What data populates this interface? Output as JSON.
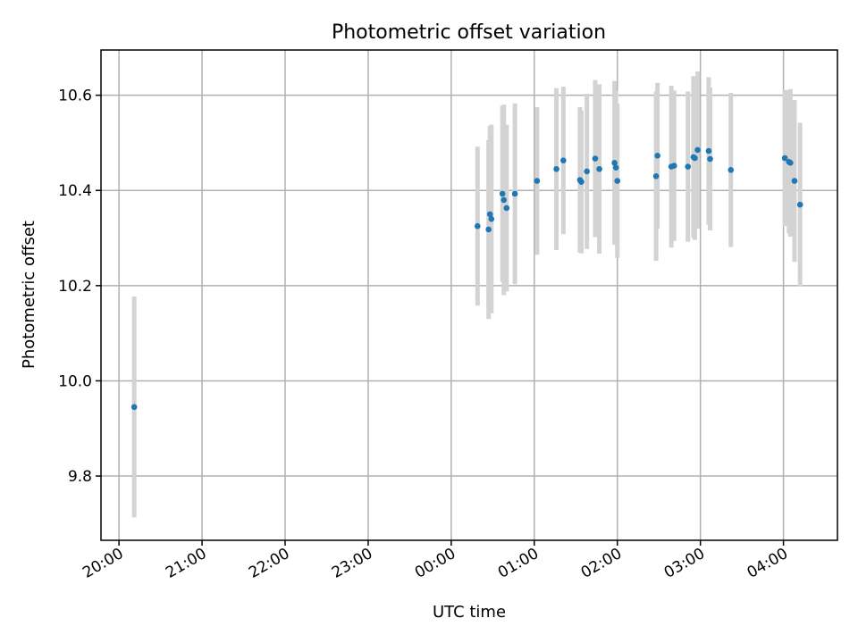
{
  "chart_data": {
    "type": "scatter",
    "title": "Photometric offset variation",
    "xlabel": "UTC time",
    "ylabel": "Photometric offset",
    "x_axis_type": "time",
    "xlim": [
      "19:47",
      "04:39"
    ],
    "ylim": [
      9.665,
      10.695
    ],
    "x_ticks": [
      "20:00",
      "21:00",
      "22:00",
      "23:00",
      "00:00",
      "01:00",
      "02:00",
      "03:00",
      "04:00"
    ],
    "y_ticks": [
      "9.8",
      "10.0",
      "10.2",
      "10.4",
      "10.6"
    ],
    "grid": true,
    "marker_color": "#1f77b4",
    "errorbar_color": "#d3d3d3",
    "points": [
      {
        "t": "20:11",
        "y": 9.945,
        "err": 0.232
      },
      {
        "t": "00:19",
        "y": 10.325,
        "err": 0.167
      },
      {
        "t": "00:27",
        "y": 10.318,
        "err": 0.188
      },
      {
        "t": "00:28",
        "y": 10.35,
        "err": 0.185
      },
      {
        "t": "00:29",
        "y": 10.34,
        "err": 0.198
      },
      {
        "t": "00:37",
        "y": 10.393,
        "err": 0.185
      },
      {
        "t": "00:38",
        "y": 10.38,
        "err": 0.2
      },
      {
        "t": "00:40",
        "y": 10.363,
        "err": 0.175
      },
      {
        "t": "00:46",
        "y": 10.393,
        "err": 0.19
      },
      {
        "t": "01:02",
        "y": 10.42,
        "err": 0.155
      },
      {
        "t": "01:16",
        "y": 10.445,
        "err": 0.17
      },
      {
        "t": "01:21",
        "y": 10.463,
        "err": 0.155
      },
      {
        "t": "01:33",
        "y": 10.422,
        "err": 0.153
      },
      {
        "t": "01:34",
        "y": 10.418,
        "err": 0.15
      },
      {
        "t": "01:38",
        "y": 10.44,
        "err": 0.163
      },
      {
        "t": "01:44",
        "y": 10.467,
        "err": 0.165
      },
      {
        "t": "01:47",
        "y": 10.445,
        "err": 0.178
      },
      {
        "t": "01:58",
        "y": 10.458,
        "err": 0.172
      },
      {
        "t": "01:59",
        "y": 10.448,
        "err": 0.162
      },
      {
        "t": "02:00",
        "y": 10.42,
        "err": 0.162
      },
      {
        "t": "02:28",
        "y": 10.43,
        "err": 0.178
      },
      {
        "t": "02:29",
        "y": 10.473,
        "err": 0.153
      },
      {
        "t": "02:39",
        "y": 10.45,
        "err": 0.17
      },
      {
        "t": "02:41",
        "y": 10.452,
        "err": 0.158
      },
      {
        "t": "02:51",
        "y": 10.45,
        "err": 0.158
      },
      {
        "t": "02:55",
        "y": 10.47,
        "err": 0.17
      },
      {
        "t": "02:56",
        "y": 10.468,
        "err": 0.172
      },
      {
        "t": "02:58",
        "y": 10.485,
        "err": 0.165
      },
      {
        "t": "03:06",
        "y": 10.483,
        "err": 0.155
      },
      {
        "t": "03:07",
        "y": 10.466,
        "err": 0.15
      },
      {
        "t": "03:22",
        "y": 10.443,
        "err": 0.162
      },
      {
        "t": "04:01",
        "y": 10.468,
        "err": 0.143
      },
      {
        "t": "04:04",
        "y": 10.46,
        "err": 0.15
      },
      {
        "t": "04:05",
        "y": 10.458,
        "err": 0.155
      },
      {
        "t": "04:08",
        "y": 10.42,
        "err": 0.17
      },
      {
        "t": "04:12",
        "y": 10.37,
        "err": 0.172
      }
    ]
  }
}
